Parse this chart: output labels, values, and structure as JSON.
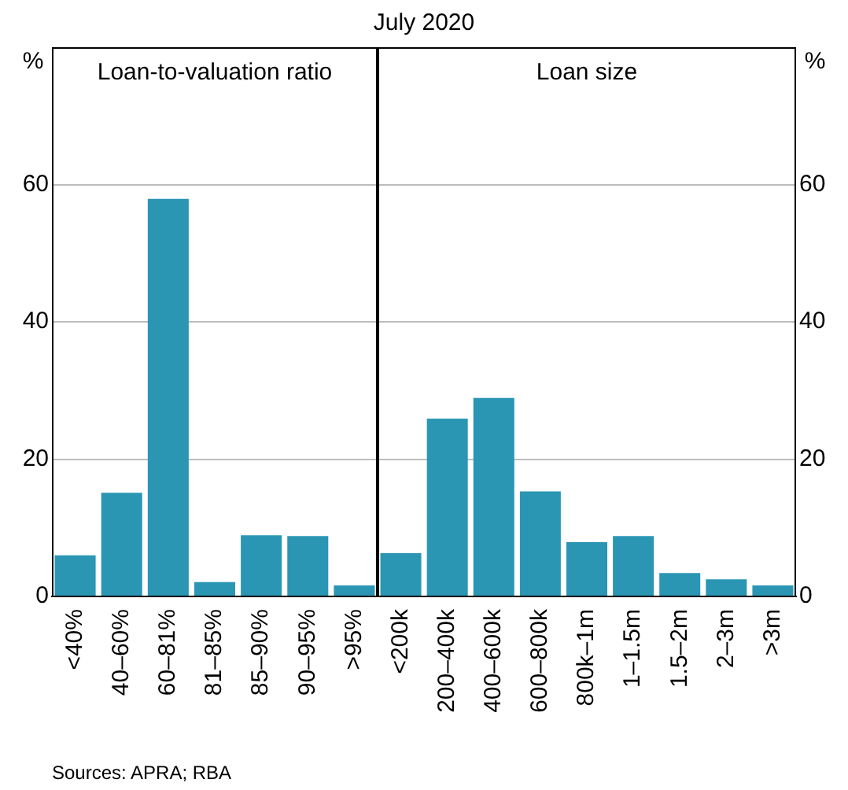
{
  "chart_data": [
    {
      "type": "bar",
      "title": "Loan-to-valuation ratio",
      "ylabel": "%",
      "categories": [
        "<40%",
        "40–60%",
        "60–81%",
        "81–85%",
        "85–90%",
        "90–95%",
        ">95%"
      ],
      "values": [
        6.0,
        15.1,
        57.9,
        2.1,
        8.9,
        8.8,
        1.6
      ],
      "color": "#2a96b4",
      "ylim": [
        0,
        80
      ],
      "yticks": [
        0,
        20,
        40,
        60
      ],
      "grid": "y"
    },
    {
      "type": "bar",
      "title": "Loan size",
      "subtitle": "July 2020",
      "ylabel": "%",
      "categories": [
        "<200k",
        "200–400k",
        "400–600k",
        "600–800k",
        "800k–1m",
        "1–1.5m",
        "1.5–2m",
        "2–3m",
        ">3m"
      ],
      "values": [
        6.3,
        25.9,
        28.9,
        15.3,
        7.9,
        8.8,
        3.4,
        2.5,
        1.6
      ],
      "color": "#2a96b4",
      "ylim": [
        0,
        80
      ],
      "yticks": [
        0,
        20,
        40,
        60
      ],
      "grid": "y",
      "annotations": [
        "Sources: APRA; RBA"
      ]
    }
  ]
}
